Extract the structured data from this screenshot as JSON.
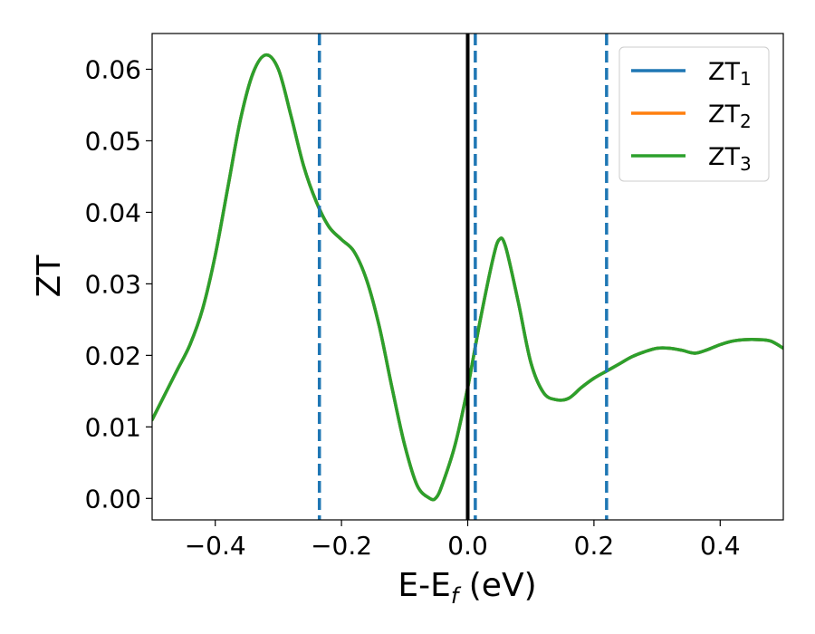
{
  "chart_data": {
    "type": "line",
    "xlabel": "E-E",
    "xlabel_sub": "f",
    "xlabel_unit": " (eV)",
    "ylabel": "ZT",
    "xlim": [
      -0.5,
      0.5
    ],
    "ylim": [
      -0.003,
      0.065
    ],
    "x_ticks": [
      -0.4,
      -0.2,
      0.0,
      0.2,
      0.4
    ],
    "x_tick_labels": [
      "−0.4",
      "−0.2",
      "0.0",
      "0.2",
      "0.4"
    ],
    "y_ticks": [
      0.0,
      0.01,
      0.02,
      0.03,
      0.04,
      0.05,
      0.06
    ],
    "y_tick_labels": [
      "0.00",
      "0.01",
      "0.02",
      "0.03",
      "0.04",
      "0.05",
      "0.06"
    ],
    "grid": false,
    "legend_position": "top-right",
    "fermi_level_line": {
      "x": 0.0,
      "color": "#000000"
    },
    "dashed_lines": {
      "x": [
        -0.235,
        0.012,
        0.22
      ],
      "color": "#1f77b4"
    },
    "x": [
      -0.5,
      -0.48,
      -0.46,
      -0.44,
      -0.42,
      -0.4,
      -0.38,
      -0.36,
      -0.34,
      -0.32,
      -0.3,
      -0.28,
      -0.26,
      -0.24,
      -0.22,
      -0.2,
      -0.18,
      -0.16,
      -0.14,
      -0.12,
      -0.1,
      -0.08,
      -0.06,
      -0.05,
      -0.04,
      -0.02,
      0.0,
      0.02,
      0.04,
      0.05,
      0.06,
      0.08,
      0.1,
      0.12,
      0.14,
      0.16,
      0.18,
      0.2,
      0.22,
      0.24,
      0.26,
      0.28,
      0.3,
      0.32,
      0.34,
      0.36,
      0.38,
      0.4,
      0.42,
      0.44,
      0.46,
      0.48,
      0.5
    ],
    "series": [
      {
        "name": "ZT",
        "name_sub": "1",
        "color": "#1f77b4",
        "values": [
          0.011,
          0.0145,
          0.018,
          0.0215,
          0.0265,
          0.034,
          0.0435,
          0.053,
          0.0595,
          0.062,
          0.06,
          0.0535,
          0.0465,
          0.0415,
          0.038,
          0.0362,
          0.0345,
          0.0305,
          0.024,
          0.0155,
          0.0075,
          0.0018,
          0.0,
          0.0001,
          0.002,
          0.0075,
          0.0155,
          0.025,
          0.0335,
          0.0362,
          0.0352,
          0.0275,
          0.019,
          0.0148,
          0.0138,
          0.014,
          0.0155,
          0.0168,
          0.0178,
          0.0188,
          0.0198,
          0.0205,
          0.021,
          0.021,
          0.0207,
          0.0203,
          0.0208,
          0.0215,
          0.022,
          0.0222,
          0.0222,
          0.022,
          0.021
        ]
      },
      {
        "name": "ZT",
        "name_sub": "2",
        "color": "#ff7f0e",
        "values": [
          0.011,
          0.0145,
          0.018,
          0.0215,
          0.0265,
          0.034,
          0.0435,
          0.053,
          0.0595,
          0.062,
          0.06,
          0.0535,
          0.0465,
          0.0415,
          0.038,
          0.0362,
          0.0345,
          0.0305,
          0.024,
          0.0155,
          0.0075,
          0.0018,
          0.0,
          0.0001,
          0.002,
          0.0075,
          0.0155,
          0.025,
          0.0335,
          0.0362,
          0.0352,
          0.0275,
          0.019,
          0.0148,
          0.0138,
          0.014,
          0.0155,
          0.0168,
          0.0178,
          0.0188,
          0.0198,
          0.0205,
          0.021,
          0.021,
          0.0207,
          0.0203,
          0.0208,
          0.0215,
          0.022,
          0.0222,
          0.0222,
          0.022,
          0.021
        ]
      },
      {
        "name": "ZT",
        "name_sub": "3",
        "color": "#2ca02c",
        "values": [
          0.011,
          0.0145,
          0.018,
          0.0215,
          0.0265,
          0.034,
          0.0435,
          0.053,
          0.0595,
          0.062,
          0.06,
          0.0535,
          0.0465,
          0.0415,
          0.038,
          0.0362,
          0.0345,
          0.0305,
          0.024,
          0.0155,
          0.0075,
          0.0018,
          0.0,
          0.0001,
          0.002,
          0.0075,
          0.0155,
          0.025,
          0.0335,
          0.0362,
          0.0352,
          0.0275,
          0.019,
          0.0148,
          0.0138,
          0.014,
          0.0155,
          0.0168,
          0.0178,
          0.0188,
          0.0198,
          0.0205,
          0.021,
          0.021,
          0.0207,
          0.0203,
          0.0208,
          0.0215,
          0.022,
          0.0222,
          0.0222,
          0.022,
          0.021
        ]
      }
    ]
  }
}
